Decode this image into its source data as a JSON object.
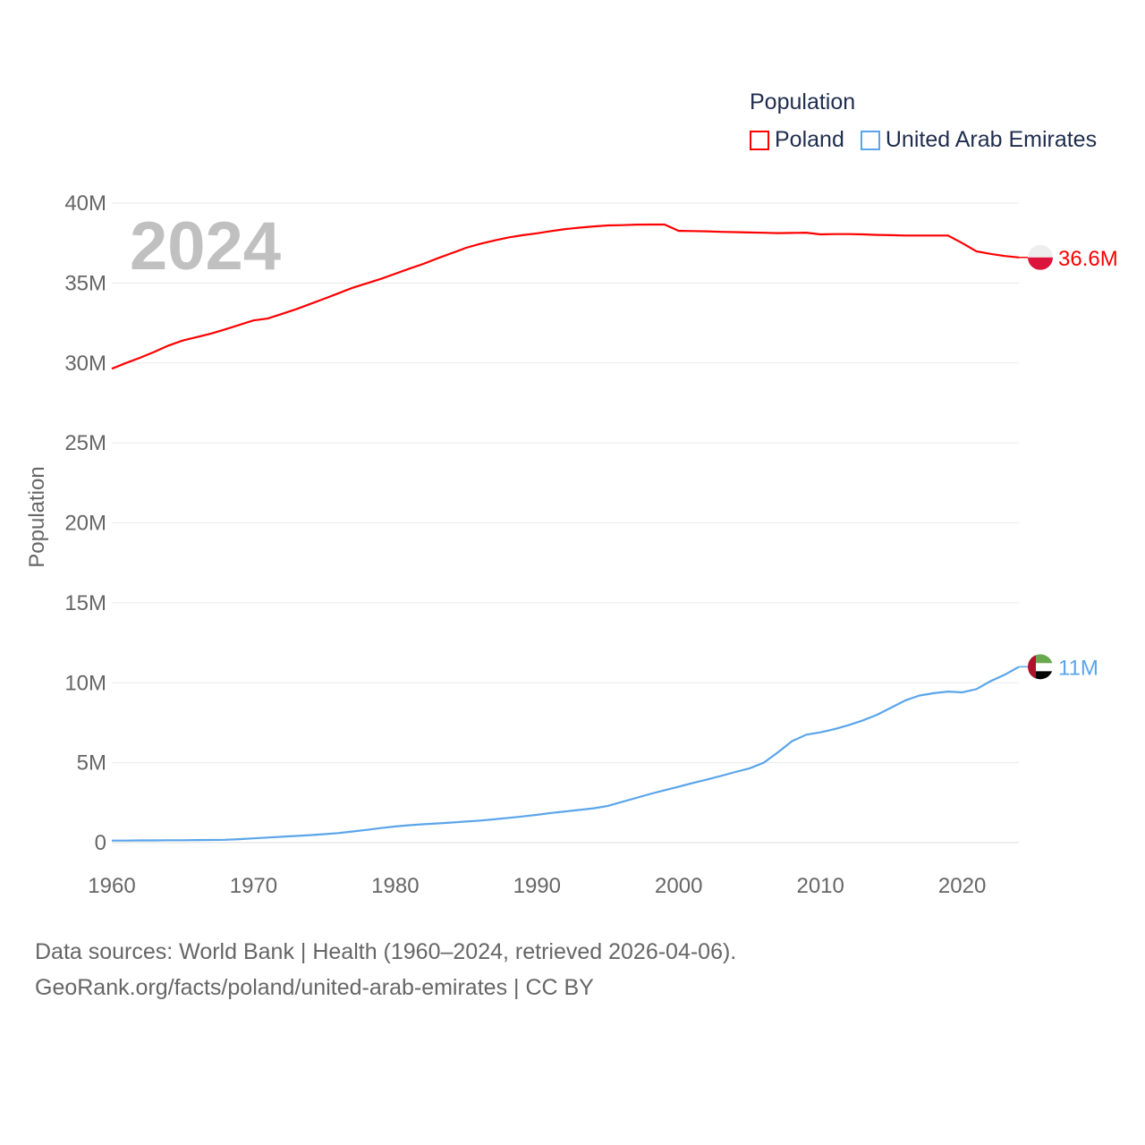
{
  "legend": {
    "title": "Population",
    "items": [
      {
        "name": "Poland",
        "color": "#ff0000"
      },
      {
        "name": "United Arab Emirates",
        "color": "#5aa5ea"
      }
    ]
  },
  "year_label": "2024",
  "footer": {
    "line1": "Data sources: World Bank | Health (1960–2024, retrieved 2026-04-06).",
    "line2": "GeoRank.org/facts/poland/united-arab-emirates | CC BY"
  },
  "chart_data": {
    "type": "line",
    "title": "Population",
    "xlabel": "",
    "ylabel": "Population",
    "xlim": [
      1960,
      2024
    ],
    "ylim": [
      0,
      40000000
    ],
    "x_ticks": [
      "1960",
      "1970",
      "1980",
      "1990",
      "2000",
      "2010",
      "2020"
    ],
    "y_ticks": [
      "0",
      "5M",
      "10M",
      "15M",
      "20M",
      "25M",
      "30M",
      "35M",
      "40M"
    ],
    "grid": true,
    "legend_position": "top-right",
    "x_start": 1960,
    "series": [
      {
        "name": "Poland",
        "color": "#ff0000",
        "end_label": "36.6M",
        "values_millions": [
          29.64,
          30.0,
          30.33,
          30.69,
          31.09,
          31.4,
          31.62,
          31.84,
          32.1,
          32.38,
          32.66,
          32.78,
          33.07,
          33.36,
          33.69,
          34.02,
          34.36,
          34.7,
          34.98,
          35.26,
          35.58,
          35.9,
          36.2,
          36.55,
          36.87,
          37.2,
          37.45,
          37.66,
          37.85,
          37.99,
          38.11,
          38.25,
          38.37,
          38.46,
          38.54,
          38.6,
          38.62,
          38.65,
          38.66,
          38.66,
          38.26,
          38.25,
          38.23,
          38.2,
          38.18,
          38.16,
          38.14,
          38.12,
          38.13,
          38.15,
          38.04,
          38.06,
          38.06,
          38.04,
          38.01,
          37.99,
          37.97,
          37.97,
          37.97,
          37.97,
          37.5,
          36.98,
          36.82,
          36.69,
          36.6
        ]
      },
      {
        "name": "United Arab Emirates",
        "color": "#5aa5ea",
        "end_label": "11M",
        "values_millions": [
          0.13,
          0.13,
          0.14,
          0.14,
          0.15,
          0.15,
          0.16,
          0.17,
          0.18,
          0.22,
          0.27,
          0.32,
          0.37,
          0.42,
          0.47,
          0.53,
          0.6,
          0.7,
          0.8,
          0.91,
          1.01,
          1.09,
          1.15,
          1.2,
          1.26,
          1.32,
          1.38,
          1.46,
          1.55,
          1.64,
          1.74,
          1.86,
          1.95,
          2.05,
          2.15,
          2.3,
          2.55,
          2.8,
          3.05,
          3.28,
          3.5,
          3.73,
          3.95,
          4.18,
          4.42,
          4.65,
          5.0,
          5.65,
          6.35,
          6.75,
          6.9,
          7.1,
          7.35,
          7.65,
          8.0,
          8.45,
          8.9,
          9.2,
          9.35,
          9.45,
          9.4,
          9.6,
          10.1,
          10.5,
          11.0
        ]
      }
    ]
  }
}
